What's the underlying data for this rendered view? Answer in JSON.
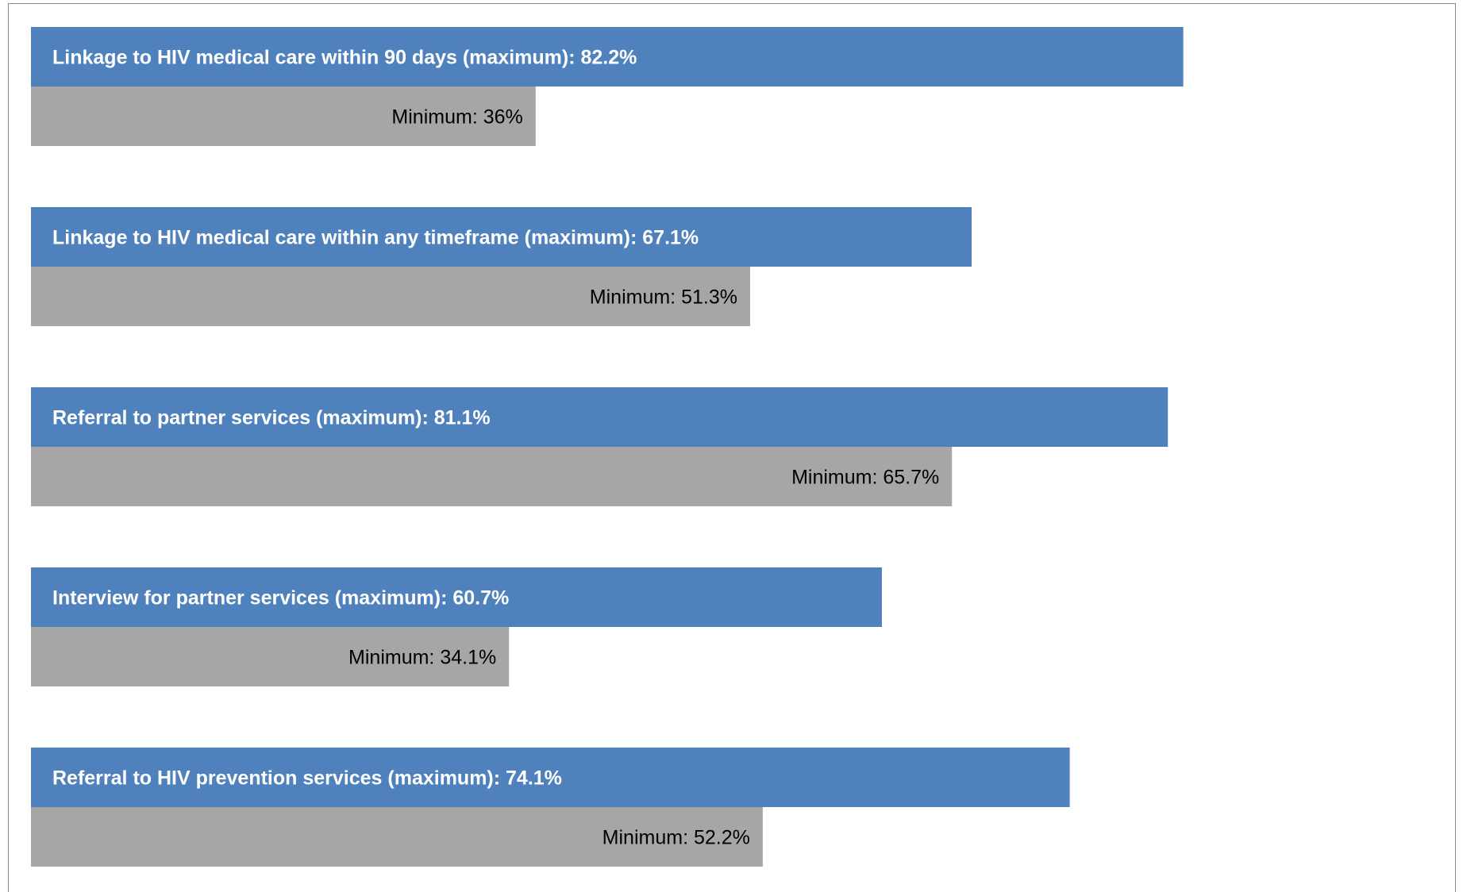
{
  "chart_data": {
    "type": "bar",
    "orientation": "horizontal",
    "title": "",
    "xlabel": "",
    "ylabel": "",
    "xlim": [
      0,
      100
    ],
    "grid": false,
    "legend": "none",
    "categories": [
      "Linkage to HIV medical care within 90 days",
      "Linkage to HIV medical care within any timeframe",
      "Referral to partner services",
      "Interview for partner services",
      "Referral to HIV prevention services"
    ],
    "series": [
      {
        "name": "maximum",
        "color": "#4f81bd",
        "values": [
          82.2,
          67.1,
          81.1,
          60.7,
          74.1
        ],
        "labels": [
          "Linkage to HIV medical care within 90 days (maximum): 82.2%",
          "Linkage to HIV medical care within any timeframe (maximum): 67.1%",
          "Referral to partner services (maximum): 81.1%",
          "Interview for partner services (maximum): 60.7%",
          "Referral to HIV prevention services (maximum): 74.1%"
        ]
      },
      {
        "name": "minimum",
        "color": "#a6a6a6",
        "values": [
          36,
          51.3,
          65.7,
          34.1,
          52.2
        ],
        "labels": [
          "Minimum: 36%",
          "Minimum: 51.3%",
          "Minimum: 65.7%",
          "Minimum: 34.1%",
          "Minimum: 52.2%"
        ]
      }
    ]
  }
}
